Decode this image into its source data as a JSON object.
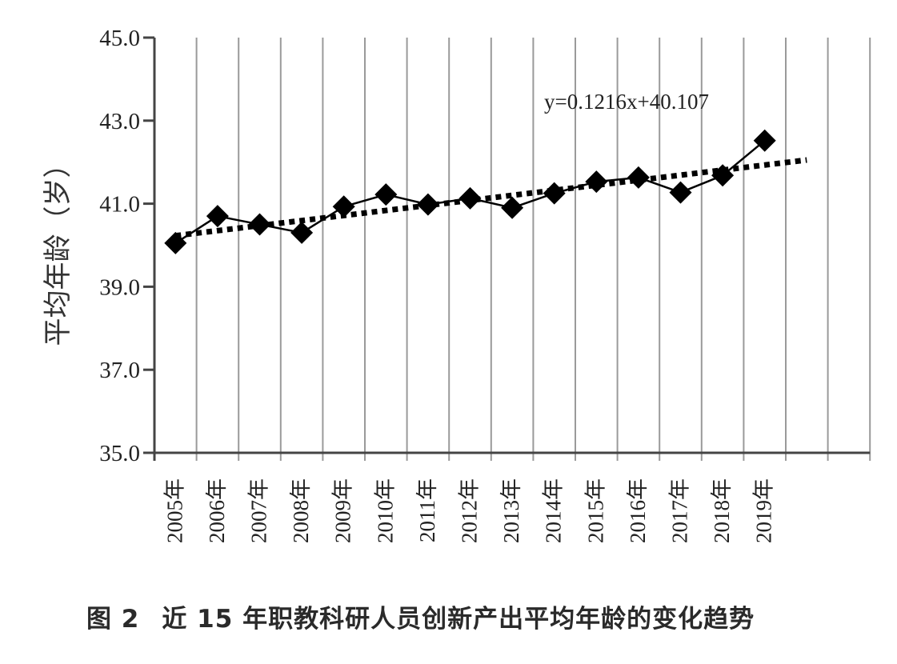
{
  "chart_data": {
    "type": "line",
    "ylabel": "平均年龄（岁）",
    "ylim": [
      35.0,
      45.0
    ],
    "yticks": [
      "35.0",
      "37.0",
      "39.0",
      "41.0",
      "43.0",
      "45.0"
    ],
    "categories": [
      "2005年",
      "2006年",
      "2007年",
      "2008年",
      "2009年",
      "2010年",
      "2011年",
      "2012年",
      "2013年",
      "2014年",
      "2015年",
      "2016年",
      "2017年",
      "2018年",
      "2019年"
    ],
    "series": [
      {
        "values": [
          40.05,
          40.7,
          40.5,
          40.3,
          40.93,
          41.22,
          40.98,
          41.13,
          40.9,
          41.25,
          41.53,
          41.63,
          41.27,
          41.68,
          42.52
        ],
        "marker": "diamond",
        "color": "#000000"
      }
    ],
    "trendline": {
      "equation": "y=0.1216x+40.107",
      "slope": 0.1216,
      "intercept": 40.107,
      "style": "dotted"
    },
    "grid": "vertical"
  },
  "caption": {
    "figure_label": "图 2",
    "text": "近 15 年职教科研人员创新产出平均年龄的变化趋势"
  }
}
